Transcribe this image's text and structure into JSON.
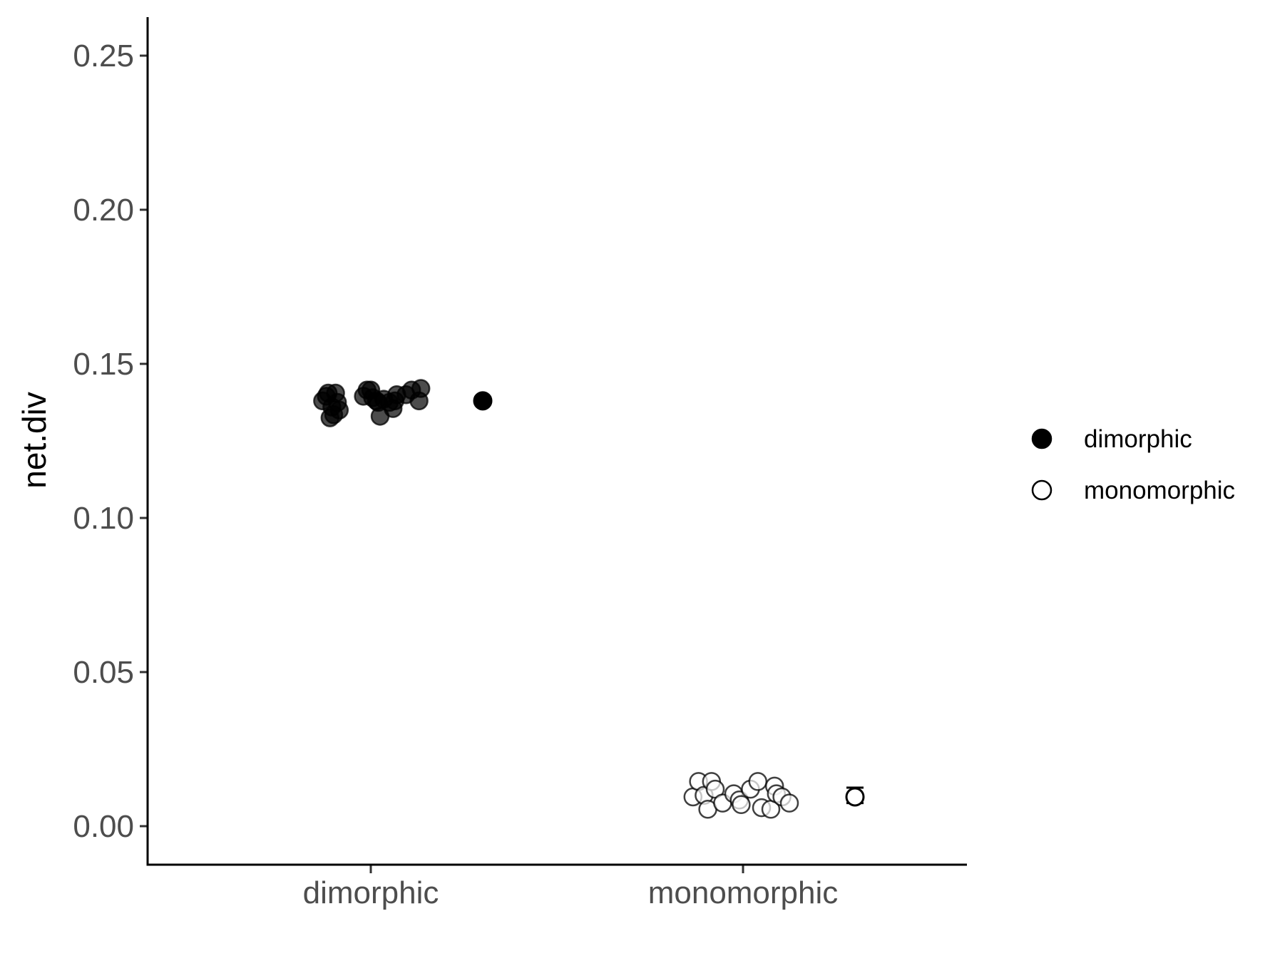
{
  "chart_data": {
    "type": "scatter",
    "title": "",
    "xlabel": "",
    "ylabel": "net.div",
    "categories": [
      "dimorphic",
      "monomorphic"
    ],
    "ylim": [
      -0.0125,
      0.2625
    ],
    "yticks": [
      0.0,
      0.05,
      0.1,
      0.15,
      0.2,
      0.25
    ],
    "ytick_labels": [
      "0.00",
      "0.05",
      "0.10",
      "0.15",
      "0.20",
      "0.25"
    ],
    "grid": false,
    "legend_position": "right",
    "legend": [
      {
        "label": "dimorphic",
        "marker": "filled-circle"
      },
      {
        "label": "monomorphic",
        "marker": "open-circle"
      }
    ],
    "colors": {
      "filled": "#000000",
      "open": "#ffffff",
      "stroke": "#000000",
      "tick_text": "#4d4d4d"
    },
    "series": [
      {
        "name": "dimorphic",
        "category": "dimorphic",
        "marker": "filled",
        "points": [
          {
            "x": -0.13,
            "y": 0.138
          },
          {
            "x": -0.12,
            "y": 0.1395
          },
          {
            "x": -0.115,
            "y": 0.1405
          },
          {
            "x": -0.11,
            "y": 0.1325
          },
          {
            "x": -0.105,
            "y": 0.136
          },
          {
            "x": -0.1,
            "y": 0.1335
          },
          {
            "x": -0.095,
            "y": 0.1405
          },
          {
            "x": -0.09,
            "y": 0.1375
          },
          {
            "x": -0.085,
            "y": 0.135
          },
          {
            "x": -0.02,
            "y": 0.1395
          },
          {
            "x": -0.01,
            "y": 0.1415
          },
          {
            "x": 0.0,
            "y": 0.1415
          },
          {
            "x": 0.005,
            "y": 0.139
          },
          {
            "x": 0.015,
            "y": 0.138
          },
          {
            "x": 0.02,
            "y": 0.1375
          },
          {
            "x": 0.025,
            "y": 0.133
          },
          {
            "x": 0.035,
            "y": 0.1385
          },
          {
            "x": 0.05,
            "y": 0.1375
          },
          {
            "x": 0.06,
            "y": 0.1355
          },
          {
            "x": 0.065,
            "y": 0.138
          },
          {
            "x": 0.07,
            "y": 0.14
          },
          {
            "x": 0.095,
            "y": 0.14
          },
          {
            "x": 0.11,
            "y": 0.1415
          },
          {
            "x": 0.13,
            "y": 0.138
          },
          {
            "x": 0.135,
            "y": 0.142
          }
        ],
        "mean": 0.138,
        "error": [
          0.1372,
          0.1392
        ]
      },
      {
        "name": "monomorphic",
        "category": "monomorphic",
        "marker": "open",
        "points": [
          {
            "x": -0.135,
            "y": 0.0095
          },
          {
            "x": -0.12,
            "y": 0.0145
          },
          {
            "x": -0.105,
            "y": 0.01
          },
          {
            "x": -0.095,
            "y": 0.0055
          },
          {
            "x": -0.085,
            "y": 0.0145
          },
          {
            "x": -0.075,
            "y": 0.012
          },
          {
            "x": -0.055,
            "y": 0.0075
          },
          {
            "x": -0.025,
            "y": 0.0105
          },
          {
            "x": -0.01,
            "y": 0.0085
          },
          {
            "x": -0.005,
            "y": 0.007
          },
          {
            "x": 0.02,
            "y": 0.012
          },
          {
            "x": 0.04,
            "y": 0.0145
          },
          {
            "x": 0.05,
            "y": 0.006
          },
          {
            "x": 0.075,
            "y": 0.0055
          },
          {
            "x": 0.085,
            "y": 0.013
          },
          {
            "x": 0.09,
            "y": 0.0105
          },
          {
            "x": 0.105,
            "y": 0.0095
          },
          {
            "x": 0.125,
            "y": 0.0075
          }
        ],
        "mean": 0.0095,
        "error": [
          0.0075,
          0.0125
        ]
      }
    ]
  }
}
